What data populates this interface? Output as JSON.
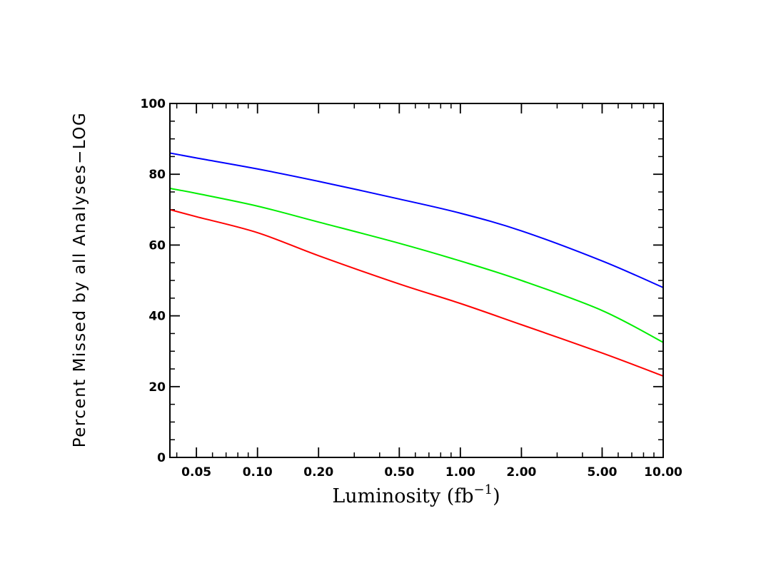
{
  "chart_data": {
    "type": "line",
    "title": "",
    "xlabel": "Luminosity (fb",
    "xlabel_superscript": "−1",
    "xlabel_suffix": ")",
    "ylabel": "Percent Missed by all Analyses−LOG",
    "x_scale": "log",
    "xlim": [
      0.037,
      10.0
    ],
    "ylim": [
      0,
      100
    ],
    "x_ticks": [
      0.05,
      0.1,
      0.2,
      0.5,
      1.0,
      2.0,
      5.0,
      10.0
    ],
    "x_tick_labels": [
      "0.05",
      "0.10",
      "0.20",
      "0.50",
      "1.00",
      "2.00",
      "5.00",
      "10.00"
    ],
    "y_ticks": [
      0,
      20,
      40,
      60,
      80,
      100
    ],
    "y_tick_labels": [
      "0",
      "20",
      "40",
      "60",
      "80",
      "100"
    ],
    "grid": false,
    "x": [
      0.037,
      0.05,
      0.1,
      0.2,
      0.5,
      1.0,
      2.0,
      5.0,
      10.0
    ],
    "series": [
      {
        "color": "#0000ff",
        "values": [
          86,
          84.6,
          81.5,
          78,
          73,
          69,
          64,
          55.5,
          48
        ]
      },
      {
        "color": "#00ee00",
        "values": [
          76,
          74.6,
          71,
          66.5,
          60.5,
          55.5,
          50,
          41.5,
          32.5
        ]
      },
      {
        "color": "#ff0000",
        "values": [
          70,
          68,
          63.5,
          57,
          49,
          43.5,
          37.5,
          29.5,
          23
        ]
      }
    ]
  }
}
